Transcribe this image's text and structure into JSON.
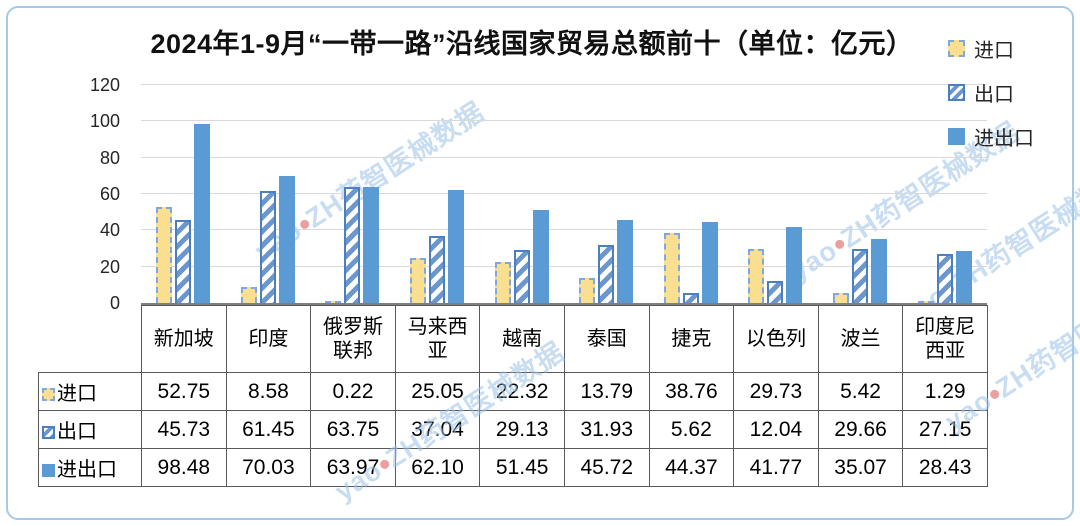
{
  "title": "2024年1-9月“一带一路”沿线国家贸易总额前十（单位：亿元）",
  "chart_data": {
    "type": "bar",
    "title": "2024年1-9月“一带一路”沿线国家贸易总额前十（单位：亿元）",
    "unit": "亿元",
    "categories": [
      "新加坡",
      "印度",
      "俄罗斯联邦",
      "马来西亚",
      "越南",
      "泰国",
      "捷克",
      "以色列",
      "波兰",
      "印度尼西亚"
    ],
    "series": [
      {
        "name": "进口",
        "css": "import",
        "values": [
          "52.75",
          "8.58",
          "0.22",
          "25.05",
          "22.32",
          "13.79",
          "38.76",
          "29.73",
          "5.42",
          "1.29"
        ]
      },
      {
        "name": "出口",
        "css": "export",
        "values": [
          "45.73",
          "61.45",
          "63.75",
          "37.04",
          "29.13",
          "31.93",
          "5.62",
          "12.04",
          "29.66",
          "27.15"
        ]
      },
      {
        "name": "进出口",
        "css": "total",
        "values": [
          "98.48",
          "70.03",
          "63.97",
          "62.10",
          "51.45",
          "45.72",
          "44.37",
          "41.77",
          "35.07",
          "28.43"
        ]
      }
    ],
    "ylim": [
      0,
      120
    ],
    "yticks": [
      0,
      20,
      40,
      60,
      80,
      100,
      120
    ],
    "grid": true,
    "legend_position": "top-right"
  },
  "watermark": {
    "prefix": "yao",
    "suffix": "ZH药智医械数据"
  },
  "colors": {
    "import_fill": "#F9DF8F",
    "import_border": "#7FA8DC",
    "export_stripe": "#6B96CE",
    "export_border": "#4C7FBF",
    "total_fill": "#5B9BD5",
    "frame_border": "#A6C9E8",
    "grid": "#D9D9D9",
    "axis": "#7F7F7F",
    "table_border": "#595959",
    "watermark": "#9CC3E7",
    "wm_dot": "#D9534F"
  }
}
